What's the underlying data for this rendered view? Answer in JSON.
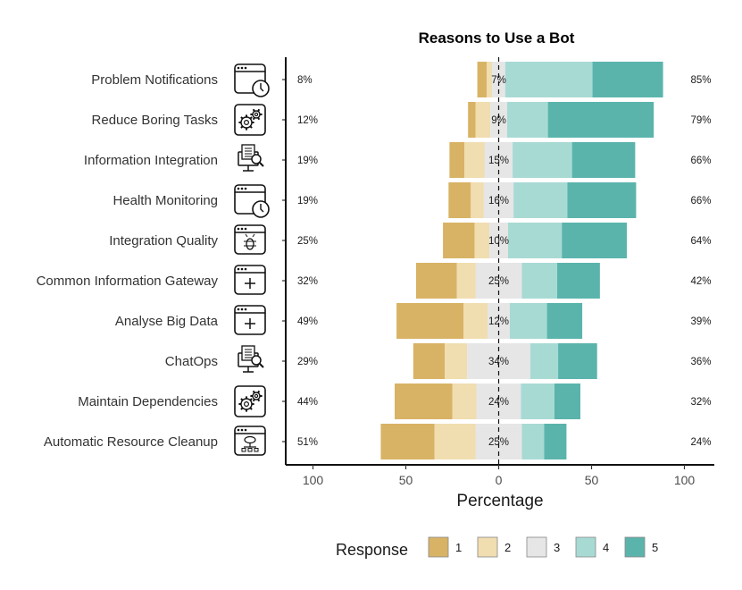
{
  "chart_data": {
    "type": "bar",
    "subtype": "diverging-stacked-likert",
    "title": "Reasons to Use a Bot",
    "xlabel": "Percentage",
    "ylabel": "",
    "xlim": [
      -115,
      115
    ],
    "xticks": [
      -100,
      -50,
      0,
      50,
      100
    ],
    "xtick_labels": [
      "100",
      "50",
      "0",
      "50",
      "100"
    ],
    "legend_title": "Response",
    "legend_position": "bottom",
    "series": [
      {
        "name": "1",
        "color": "#D8B365"
      },
      {
        "name": "2",
        "color": "#F0DDB0"
      },
      {
        "name": "3",
        "color": "#E6E6E6"
      },
      {
        "name": "4",
        "color": "#A8DAD4"
      },
      {
        "name": "5",
        "color": "#5AB4AC"
      }
    ],
    "categories": [
      {
        "label": "Problem Notifications",
        "icon": "window-clock-icon",
        "values": [
          5,
          3,
          7,
          47,
          38
        ],
        "low_pct": "8%",
        "mid_pct": "7%",
        "high_pct": "85%"
      },
      {
        "label": "Reduce Boring Tasks",
        "icon": "gears-icon",
        "values": [
          4,
          8,
          9,
          22,
          57
        ],
        "low_pct": "12%",
        "mid_pct": "9%",
        "high_pct": "79%"
      },
      {
        "label": "Information Integration",
        "icon": "computer-search-icon",
        "values": [
          8,
          11,
          15,
          32,
          34
        ],
        "low_pct": "19%",
        "mid_pct": "15%",
        "high_pct": "66%"
      },
      {
        "label": "Health Monitoring",
        "icon": "window-clock-icon",
        "values": [
          12,
          7,
          16,
          29,
          37
        ],
        "low_pct": "19%",
        "mid_pct": "16%",
        "high_pct": "66%"
      },
      {
        "label": "Integration Quality",
        "icon": "window-bug-icon",
        "values": [
          17,
          8,
          10,
          29,
          35
        ],
        "low_pct": "25%",
        "mid_pct": "10%",
        "high_pct": "64%"
      },
      {
        "label": "Common Information Gateway",
        "icon": "window-plus-icon",
        "values": [
          22,
          10,
          25,
          19,
          23
        ],
        "low_pct": "32%",
        "mid_pct": "25%",
        "high_pct": "42%"
      },
      {
        "label": "Analyse Big Data",
        "icon": "window-plus-icon",
        "values": [
          36,
          13,
          12,
          20,
          19
        ],
        "low_pct": "49%",
        "mid_pct": "12%",
        "high_pct": "39%"
      },
      {
        "label": "ChatOps",
        "icon": "computer-search-icon",
        "values": [
          17,
          12,
          34,
          15,
          21
        ],
        "low_pct": "29%",
        "mid_pct": "34%",
        "high_pct": "36%"
      },
      {
        "label": "Maintain Dependencies",
        "icon": "gears-icon",
        "values": [
          31,
          13,
          24,
          18,
          14
        ],
        "low_pct": "44%",
        "mid_pct": "24%",
        "high_pct": "32%"
      },
      {
        "label": "Automatic Resource Cleanup",
        "icon": "window-network-icon",
        "values": [
          29,
          22,
          25,
          12,
          12
        ],
        "low_pct": "51%",
        "mid_pct": "25%",
        "high_pct": "24%"
      }
    ]
  }
}
